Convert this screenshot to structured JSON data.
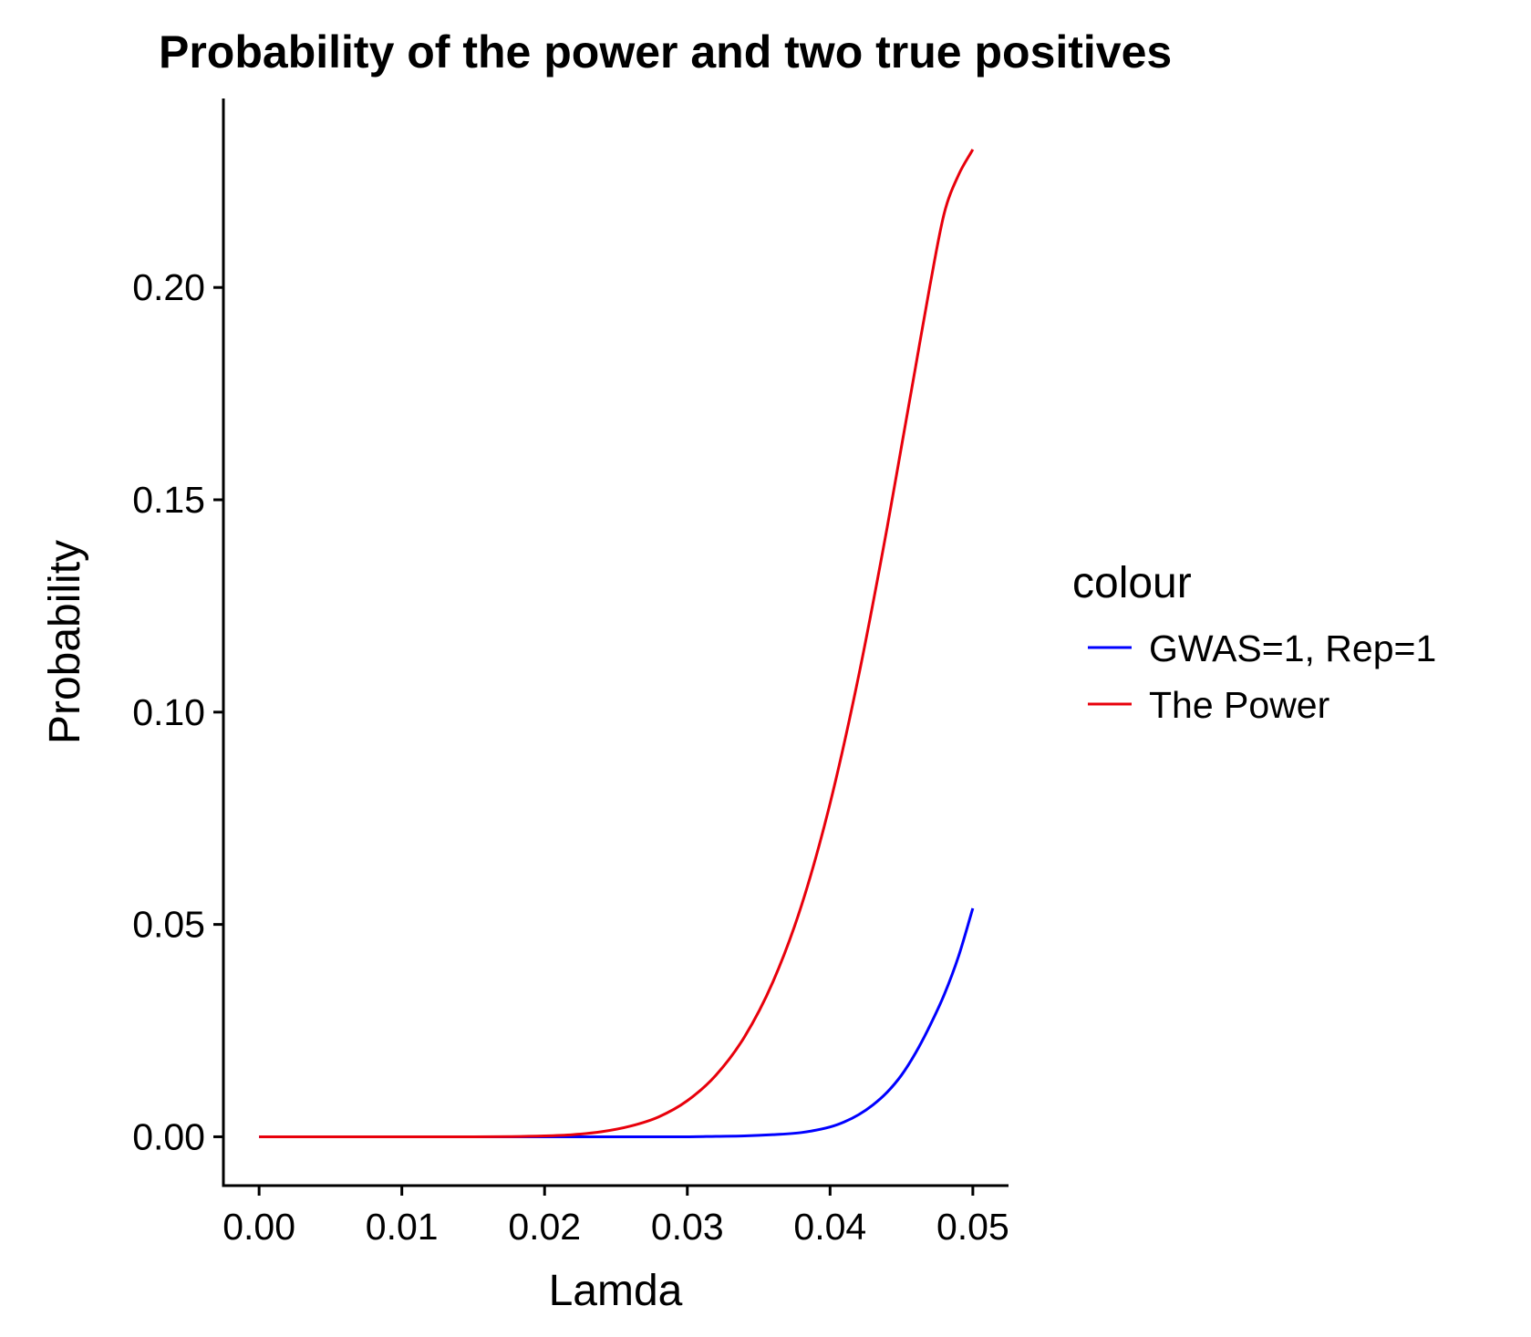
{
  "chart_data": {
    "type": "line",
    "title": "Probability of the power and two true positives",
    "xlabel": "Lamda",
    "ylabel": "Probability",
    "xlim": [
      -0.0025,
      0.0525
    ],
    "ylim": [
      -0.0115,
      0.2445
    ],
    "x_ticks": [
      {
        "value": 0.0,
        "label": "0.00"
      },
      {
        "value": 0.01,
        "label": "0.01"
      },
      {
        "value": 0.02,
        "label": "0.02"
      },
      {
        "value": 0.03,
        "label": "0.03"
      },
      {
        "value": 0.04,
        "label": "0.04"
      },
      {
        "value": 0.05,
        "label": "0.05"
      }
    ],
    "y_ticks": [
      {
        "value": 0.0,
        "label": "0.00"
      },
      {
        "value": 0.05,
        "label": "0.05"
      },
      {
        "value": 0.1,
        "label": "0.10"
      },
      {
        "value": 0.15,
        "label": "0.15"
      },
      {
        "value": 0.2,
        "label": "0.20"
      }
    ],
    "grid": false,
    "legend": {
      "title": "colour",
      "position": "right"
    },
    "series": [
      {
        "name": "GWAS=1, Rep=1",
        "color": "#0000FF",
        "x": [
          0.0,
          0.01,
          0.02,
          0.025,
          0.03,
          0.032,
          0.034,
          0.036,
          0.038,
          0.04,
          0.041,
          0.042,
          0.043,
          0.044,
          0.045,
          0.046,
          0.047,
          0.048,
          0.049,
          0.05
        ],
        "y": [
          0.0,
          0.0,
          0.0,
          0.0,
          0.0,
          0.0001,
          0.0002,
          0.0005,
          0.001,
          0.0023,
          0.0035,
          0.0052,
          0.0075,
          0.0105,
          0.0145,
          0.0198,
          0.0262,
          0.0335,
          0.0425,
          0.0538
        ]
      },
      {
        "name": "The Power",
        "color": "#E8000B",
        "x": [
          0.0,
          0.01,
          0.015,
          0.02,
          0.022,
          0.024,
          0.026,
          0.028,
          0.03,
          0.032,
          0.034,
          0.036,
          0.038,
          0.04,
          0.042,
          0.044,
          0.045,
          0.046,
          0.047,
          0.048,
          0.049,
          0.05
        ],
        "y": [
          0.0,
          0.0,
          0.0,
          0.0002,
          0.0005,
          0.0012,
          0.0025,
          0.0047,
          0.0085,
          0.0145,
          0.0235,
          0.0365,
          0.0545,
          0.0785,
          0.1085,
          0.1435,
          0.1625,
          0.1815,
          0.2005,
          0.2175,
          0.2265,
          0.2325
        ]
      }
    ]
  }
}
